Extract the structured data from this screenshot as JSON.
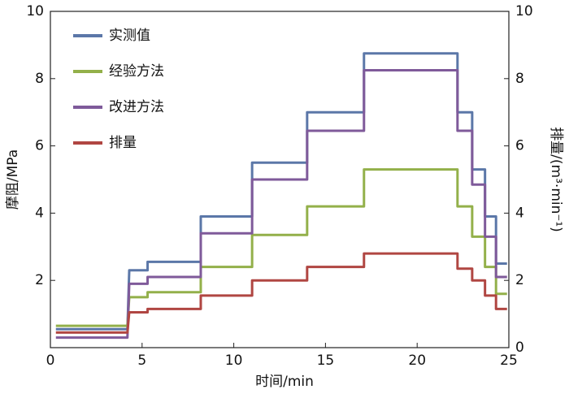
{
  "chart_data": {
    "type": "line",
    "xlabel": "时间/min",
    "ylabel": "摩阻/MPa",
    "y2label": "排量/(m³·min⁻¹)",
    "xlim": [
      0,
      25
    ],
    "xticks": [
      0,
      5,
      10,
      15,
      20,
      25
    ],
    "ylim": [
      0,
      10
    ],
    "yticks": [
      2,
      4,
      6,
      8,
      10
    ],
    "y2lim": [
      0,
      10
    ],
    "y2ticks": [
      0,
      2,
      4,
      6,
      8,
      10
    ],
    "legend": "upper left",
    "series": [
      {
        "name": "实测值",
        "color": "#5b77a8",
        "x": [
          0.3,
          4.2,
          4.3,
          5.3,
          5.3,
          8.2,
          8.2,
          11.0,
          11.0,
          14.0,
          14.0,
          17.1,
          17.1,
          22.2,
          22.2,
          23.0,
          23.0,
          23.7,
          23.7,
          24.3,
          24.3,
          24.9
        ],
        "values": [
          0.55,
          0.55,
          2.3,
          2.3,
          2.55,
          2.55,
          3.9,
          3.9,
          5.5,
          5.5,
          7.0,
          7.0,
          8.75,
          8.75,
          7.0,
          7.0,
          5.3,
          5.3,
          3.9,
          3.9,
          2.5,
          2.5
        ]
      },
      {
        "name": "经验方法",
        "color": "#93b04a",
        "x": [
          0.3,
          4.2,
          4.3,
          5.3,
          5.3,
          8.2,
          8.2,
          11.0,
          11.0,
          14.0,
          14.0,
          17.1,
          17.1,
          22.2,
          22.2,
          23.0,
          23.0,
          23.7,
          23.7,
          24.3,
          24.3,
          24.9
        ],
        "values": [
          0.65,
          0.65,
          1.5,
          1.5,
          1.65,
          1.65,
          2.4,
          2.4,
          3.35,
          3.35,
          4.2,
          4.2,
          5.3,
          5.3,
          4.2,
          4.2,
          3.3,
          3.3,
          2.4,
          2.4,
          1.6,
          1.6
        ]
      },
      {
        "name": "改进方法",
        "color": "#7f5a9a",
        "x": [
          0.3,
          4.2,
          4.3,
          5.3,
          5.3,
          8.2,
          8.2,
          11.0,
          11.0,
          14.0,
          14.0,
          17.1,
          17.1,
          22.2,
          22.2,
          23.0,
          23.0,
          23.7,
          23.7,
          24.3,
          24.3,
          24.9
        ],
        "values": [
          0.3,
          0.3,
          1.9,
          1.9,
          2.1,
          2.1,
          3.4,
          3.4,
          5.0,
          5.0,
          6.45,
          6.45,
          8.25,
          8.25,
          6.45,
          6.45,
          4.85,
          4.85,
          3.3,
          3.3,
          2.1,
          2.1
        ]
      },
      {
        "name": "排量",
        "color": "#b04642",
        "axis": "y2",
        "x": [
          0.3,
          4.2,
          4.3,
          5.3,
          5.3,
          8.2,
          8.2,
          11.0,
          11.0,
          14.0,
          14.0,
          17.1,
          17.1,
          22.2,
          22.2,
          23.0,
          23.0,
          23.7,
          23.7,
          24.3,
          24.3,
          24.9
        ],
        "values": [
          0.45,
          0.45,
          1.05,
          1.05,
          1.15,
          1.15,
          1.55,
          1.55,
          2.0,
          2.0,
          2.4,
          2.4,
          2.8,
          2.8,
          2.35,
          2.35,
          2.0,
          2.0,
          1.55,
          1.55,
          1.15,
          1.15
        ]
      }
    ]
  }
}
